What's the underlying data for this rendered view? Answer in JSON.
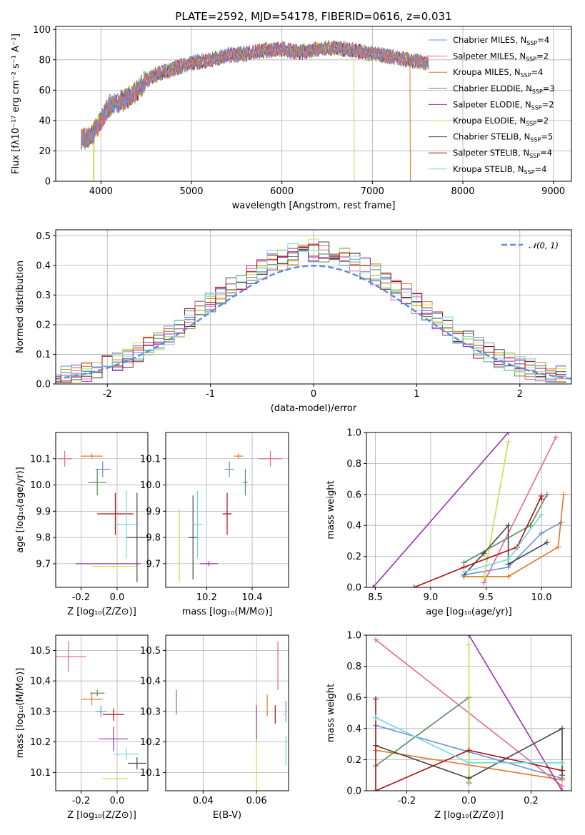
{
  "colors": [
    "#6a8fd8",
    "#e8669a",
    "#e07820",
    "#5a8a5a",
    "#9a30b0",
    "#c8e050",
    "#454545",
    "#aa1010",
    "#70d8dc"
  ],
  "chart_data": [
    {
      "id": "spectrum",
      "type": "line",
      "title": "PLATE=2592, MJD=54178, FIBERID=0616, z=0.031",
      "xlabel": "wavelength [Angstrom, rest frame]",
      "ylabel": "Flux [fλ10⁻¹⁷ erg cm⁻² s⁻¹ A⁻¹]",
      "xlim": [
        3500,
        9200
      ],
      "ylim": [
        0,
        102
      ],
      "xticks": [
        4000,
        5000,
        6000,
        7000,
        8000,
        9000
      ],
      "yticks": [
        0,
        20,
        40,
        60,
        80,
        100
      ],
      "envelope": {
        "x": [
          3700,
          3800,
          3900,
          4000,
          4100,
          4200,
          4300,
          4400,
          4500,
          4600,
          4800,
          5000,
          5200,
          5400,
          5600,
          5800,
          6000,
          6200,
          6400,
          6600,
          6800,
          7000,
          7200,
          7400,
          7600
        ],
        "y": [
          25,
          28,
          30,
          40,
          50,
          52,
          55,
          60,
          66,
          70,
          74,
          78,
          80,
          83,
          84,
          86,
          87,
          85,
          87,
          88,
          86,
          84,
          82,
          80,
          78
        ]
      },
      "drops": [
        [
          3920,
          0
        ],
        [
          6800,
          0
        ],
        [
          7420,
          0
        ]
      ],
      "legend": [
        "Chabrier MILES, N_SSP=4",
        "Salpeter MILES, N_SSP=2",
        "Kroupa MILES, N_SSP=4",
        "Chabrier ELODIE, N_SSP=3",
        "Salpeter ELODIE, N_SSP=2",
        "Kroupa ELODIE, N_SSP=2",
        "Chabrier STELIB, N_SSP=5",
        "Salpeter STELIB, N_SSP=4",
        "Kroupa STELIB, N_SSP=4"
      ],
      "legend_position": "right"
    },
    {
      "id": "residuals",
      "type": "histogram",
      "xlabel": "(data-model)/error",
      "ylabel": "Normed distribution",
      "xlim": [
        -2.5,
        2.5
      ],
      "ylim": [
        0,
        0.52
      ],
      "xticks": [
        -2,
        -1,
        0,
        1,
        2
      ],
      "yticks": [
        0.0,
        0.1,
        0.2,
        0.3,
        0.4,
        0.5
      ],
      "gaussian_label": "𝒩(0, 1)",
      "legend_position": "top-right"
    },
    {
      "id": "age-vs-Z",
      "type": "scatter",
      "xlabel": "Z [log₁₀(Z/Z⊙)]",
      "ylabel": "age  [log₁₀(age/yr)]",
      "xlim": [
        -0.34,
        0.17
      ],
      "ylim": [
        9.61,
        10.2
      ],
      "xticks": [
        -0.2,
        0.0
      ],
      "yticks": [
        9.7,
        9.8,
        9.9,
        10.0,
        10.1
      ],
      "points": [
        {
          "x": -0.08,
          "y": 10.06,
          "xe": 0.04,
          "ye": 0.03
        },
        {
          "x": -0.29,
          "y": 10.1,
          "xe": 0.04,
          "ye": 0.03
        },
        {
          "x": -0.14,
          "y": 10.11,
          "xe": 0.06,
          "ye": 0.01
        },
        {
          "x": -0.11,
          "y": 10.01,
          "xe": 0.05,
          "ye": 0.05
        },
        {
          "x": -0.05,
          "y": 9.7,
          "xe": 0.18,
          "ye": 0.001
        },
        {
          "x": -0.02,
          "y": 9.69,
          "xe": 0.12,
          "ye": 0.01
        },
        {
          "x": 0.11,
          "y": 9.8,
          "xe": 0.06,
          "ye": 0.17
        },
        {
          "x": -0.01,
          "y": 9.89,
          "xe": 0.1,
          "ye": 0.08
        },
        {
          "x": 0.05,
          "y": 9.85,
          "xe": 0.07,
          "ye": 0.13
        }
      ]
    },
    {
      "id": "age-vs-mass",
      "type": "scatter",
      "xlabel": "mass [log₁₀(M/M⊙)]",
      "ylabel": "",
      "xlim": [
        10.02,
        10.56
      ],
      "ylim": [
        9.61,
        10.2
      ],
      "xticks": [
        10.2,
        10.4
      ],
      "yticks": [
        9.7,
        9.8,
        9.9,
        10.0,
        10.1
      ],
      "points": [
        {
          "x": 10.3,
          "y": 10.06,
          "xe": 0.02,
          "ye": 0.03
        },
        {
          "x": 10.48,
          "y": 10.1,
          "xe": 0.05,
          "ye": 0.03
        },
        {
          "x": 10.34,
          "y": 10.11,
          "xe": 0.02,
          "ye": 0.01
        },
        {
          "x": 10.37,
          "y": 10.01,
          "xe": 0.01,
          "ye": 0.05
        },
        {
          "x": 10.21,
          "y": 9.7,
          "xe": 0.04,
          "ye": 0.01
        },
        {
          "x": 10.08,
          "y": 9.77,
          "xe": 0.001,
          "ye": 0.14
        },
        {
          "x": 10.14,
          "y": 9.8,
          "xe": 0.02,
          "ye": 0.16
        },
        {
          "x": 10.29,
          "y": 9.89,
          "xe": 0.02,
          "ye": 0.08
        },
        {
          "x": 10.16,
          "y": 9.85,
          "xe": 0.02,
          "ye": 0.13
        }
      ]
    },
    {
      "id": "mass-weight-vs-age",
      "type": "line",
      "xlabel": "age  [log₁₀(age/yr)]",
      "ylabel": "mass weight",
      "xlim": [
        8.42,
        10.27
      ],
      "ylim": [
        0,
        1.0
      ],
      "xticks": [
        8.5,
        9.0,
        9.5,
        10.0
      ],
      "yticks": [
        0.0,
        0.2,
        0.4,
        0.6,
        0.8,
        1.0
      ],
      "series": [
        {
          "x": [
            9.3,
            9.7,
            10.0,
            10.18
          ],
          "y": [
            0.08,
            0.13,
            0.35,
            0.42
          ]
        },
        {
          "x": [
            9.48,
            10.13
          ],
          "y": [
            0.03,
            0.97
          ]
        },
        {
          "x": [
            9.3,
            9.7,
            10.15,
            10.2
          ],
          "y": [
            0.07,
            0.07,
            0.26,
            0.6
          ]
        },
        {
          "x": [
            9.3,
            9.9,
            10.05
          ],
          "y": [
            0.16,
            0.4,
            0.6
          ]
        },
        {
          "x": [
            8.48,
            9.7
          ],
          "y": [
            0.0,
            1.0
          ]
        },
        {
          "x": [
            9.48,
            9.7
          ],
          "y": [
            0.06,
            0.94
          ]
        },
        {
          "x": [
            9.3,
            9.48,
            9.7,
            9.7,
            10.05
          ],
          "y": [
            0.08,
            0.22,
            0.4,
            0.15,
            0.29
          ]
        },
        {
          "x": [
            8.85,
            9.3,
            9.78,
            10.0,
            10.0
          ],
          "y": [
            0.0,
            0.13,
            0.26,
            0.59,
            0.57
          ]
        },
        {
          "x": [
            9.3,
            9.7,
            10.0
          ],
          "y": [
            0.1,
            0.18,
            0.47
          ]
        }
      ]
    },
    {
      "id": "mass-vs-Z",
      "type": "scatter",
      "xlabel": "Z [log₁₀(Z/Z⊙)]",
      "ylabel": "mass [log₁₀(M/M⊙)]",
      "xlim": [
        -0.34,
        0.17
      ],
      "ylim": [
        10.04,
        10.55
      ],
      "xticks": [
        -0.2,
        0.0
      ],
      "yticks": [
        10.1,
        10.2,
        10.3,
        10.4,
        10.5
      ],
      "points": [
        {
          "x": -0.09,
          "y": 10.3,
          "xe": 0.03,
          "ye": 0.02
        },
        {
          "x": -0.27,
          "y": 10.48,
          "xe": 0.1,
          "ye": 0.05
        },
        {
          "x": -0.14,
          "y": 10.34,
          "xe": 0.06,
          "ye": 0.02
        },
        {
          "x": -0.11,
          "y": 10.36,
          "xe": 0.04,
          "ye": 0.01
        },
        {
          "x": -0.02,
          "y": 10.21,
          "xe": 0.08,
          "ye": 0.04
        },
        {
          "x": -0.01,
          "y": 10.08,
          "xe": 0.07,
          "ye": 0.001
        },
        {
          "x": 0.11,
          "y": 10.13,
          "xe": 0.05,
          "ye": 0.02
        },
        {
          "x": -0.02,
          "y": 10.29,
          "xe": 0.06,
          "ye": 0.02
        },
        {
          "x": 0.05,
          "y": 10.16,
          "xe": 0.07,
          "ye": 0.02
        }
      ]
    },
    {
      "id": "mass-vs-EBV",
      "type": "scatter",
      "xlabel": "E(B-V)",
      "ylabel": "",
      "xlim": [
        0.026,
        0.072
      ],
      "ylim": [
        10.04,
        10.55
      ],
      "xticks": [
        0.04,
        0.06
      ],
      "yticks": [
        10.1,
        10.2,
        10.3,
        10.4,
        10.5
      ],
      "points": [
        {
          "x": 0.071,
          "y": 10.3,
          "xe": 0.0,
          "ye": 0.035
        },
        {
          "x": 0.068,
          "y": 10.45,
          "xe": 0.0,
          "ye": 0.08
        },
        {
          "x": 0.064,
          "y": 10.32,
          "xe": 0.0,
          "ye": 0.035
        },
        {
          "x": 0.03,
          "y": 10.33,
          "xe": 0.0,
          "ye": 0.04
        },
        {
          "x": 0.06,
          "y": 10.26,
          "xe": 0.0,
          "ye": 0.06
        },
        {
          "x": 0.06,
          "y": 10.12,
          "xe": 0.0,
          "ye": 0.09
        },
        {
          "x": 0.07,
          "y": 10.29,
          "xe": 0.0,
          "ye": 0.001
        },
        {
          "x": 0.067,
          "y": 10.29,
          "xe": 0.0,
          "ye": 0.03
        },
        {
          "x": 0.071,
          "y": 10.17,
          "xe": 0.0,
          "ye": 0.05
        }
      ]
    },
    {
      "id": "mass-weight-vs-Z",
      "type": "line",
      "xlabel": "Z [log₁₀(Z/Z⊙)]",
      "ylabel": "mass weight",
      "xlim": [
        -0.33,
        0.33
      ],
      "ylim": [
        0,
        1.0
      ],
      "xticks": [
        -0.2,
        0.0,
        0.2
      ],
      "yticks": [
        0.0,
        0.2,
        0.4,
        0.6,
        0.8,
        1.0
      ],
      "series": [
        {
          "x": [
            -0.3,
            0.3
          ],
          "y": [
            0.42,
            0.08
          ]
        },
        {
          "x": [
            -0.3,
            0.3
          ],
          "y": [
            0.97,
            0.03
          ]
        },
        {
          "x": [
            -0.3,
            0.3
          ],
          "y": [
            0.26,
            0.07
          ]
        },
        {
          "x": [
            -0.3,
            0.0,
            0.0
          ],
          "y": [
            0.16,
            0.6,
            0.05
          ]
        },
        {
          "x": [
            0.0,
            0.3
          ],
          "y": [
            1.0,
            0.0
          ]
        },
        {
          "x": [
            0.0,
            0.0
          ],
          "y": [
            0.06,
            0.94
          ]
        },
        {
          "x": [
            -0.3,
            0.0,
            0.3,
            0.3
          ],
          "y": [
            0.29,
            0.08,
            0.4,
            0.1
          ]
        },
        {
          "x": [
            -0.3,
            -0.3,
            0.0,
            0.3
          ],
          "y": [
            0.59,
            0.0,
            0.26,
            0.13
          ]
        },
        {
          "x": [
            -0.3,
            0.0,
            0.3
          ],
          "y": [
            0.47,
            0.18,
            0.18
          ]
        }
      ]
    }
  ]
}
